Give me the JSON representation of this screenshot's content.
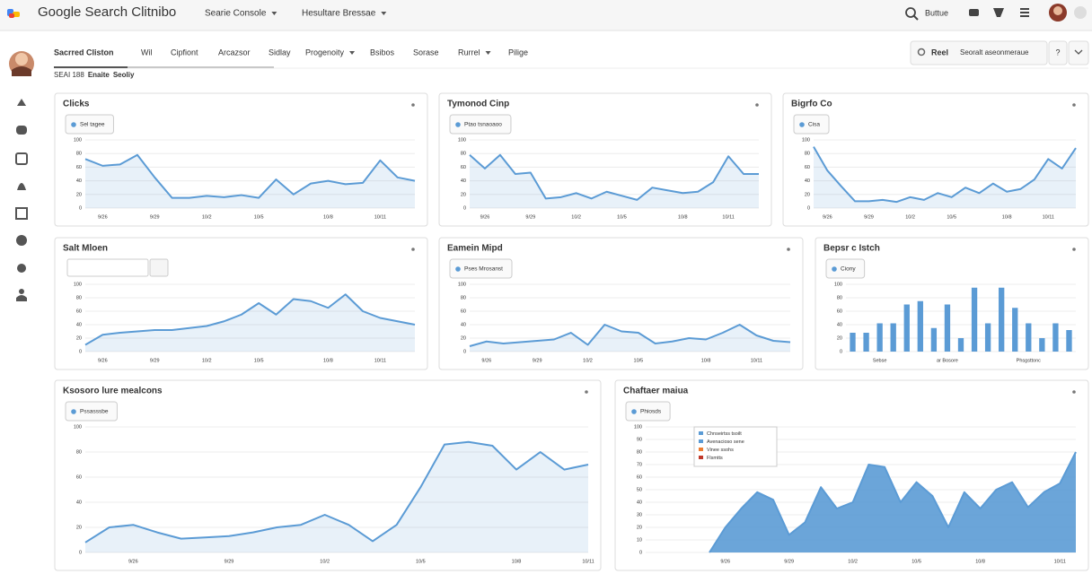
{
  "header": {
    "app_title": "Google Search Clitnibo",
    "menus": [
      "Searie Console",
      "Hesultare Bressae"
    ],
    "search_label": "Buttue"
  },
  "toolbar": {
    "tabs": [
      {
        "label": "Sacrred Cliston"
      },
      {
        "label": "Wil"
      },
      {
        "label": "Cipfiont"
      },
      {
        "label": "Arcazsor"
      },
      {
        "label": "Sidlay"
      },
      {
        "label": "Progenoity",
        "menu": true
      },
      {
        "label": "Bsibos"
      },
      {
        "label": "Sorase"
      },
      {
        "label": "Rurrel",
        "menu": true
      },
      {
        "label": "Pilige"
      }
    ],
    "breadcrumb": [
      "SEAI 188",
      "Enaite",
      "Seoliy"
    ],
    "buttons": [
      "Reel",
      "Seoralt aseonmeraue",
      "?"
    ]
  },
  "chart_data": [
    {
      "type": "line",
      "title": "Clicks",
      "filter": "Sel tagee",
      "color": "#5b9bd5",
      "categories": [
        null,
        "9/26",
        null,
        null,
        "9/29",
        null,
        null,
        "10/2",
        null,
        null,
        "10/5",
        null,
        null,
        null,
        "10/8",
        null,
        null,
        "10/11",
        null,
        null
      ],
      "values": [
        72,
        62,
        64,
        78,
        45,
        15,
        15,
        18,
        16,
        19,
        15,
        42,
        20,
        36,
        40,
        35,
        37,
        70,
        45,
        40
      ],
      "ylim": [
        0,
        100
      ],
      "yticks": [
        0,
        20,
        40,
        60,
        80,
        100
      ],
      "grid": true
    },
    {
      "type": "line",
      "title": "Tymonod Cinp",
      "filter": "Ptao tsnaoaoo",
      "color": "#5b9bd5",
      "categories": [
        null,
        "9/26",
        null,
        null,
        "9/29",
        null,
        null,
        "10/2",
        null,
        null,
        "10/5",
        null,
        null,
        null,
        "10/8",
        null,
        null,
        "10/11",
        null,
        null
      ],
      "values": [
        78,
        58,
        78,
        50,
        52,
        14,
        16,
        22,
        14,
        24,
        18,
        12,
        30,
        26,
        22,
        24,
        38,
        76,
        50,
        50
      ],
      "ylim": [
        0,
        100
      ],
      "yticks": [
        0,
        20,
        40,
        60,
        80,
        100
      ],
      "grid": true
    },
    {
      "type": "line",
      "title": "Bigrfo Co",
      "filter": "Cisa",
      "color": "#5b9bd5",
      "categories": [
        null,
        "9/26",
        null,
        null,
        "9/29",
        null,
        null,
        "10/2",
        null,
        null,
        "10/5",
        null,
        null,
        null,
        "10/8",
        null,
        null,
        "10/11",
        null,
        null
      ],
      "values": [
        90,
        55,
        32,
        10,
        10,
        12,
        9,
        16,
        12,
        22,
        16,
        30,
        22,
        36,
        24,
        28,
        42,
        72,
        58,
        88
      ],
      "ylim": [
        0,
        100
      ],
      "yticks": [
        0,
        20,
        40,
        60,
        80,
        100
      ],
      "grid": true
    },
    {
      "type": "line",
      "title": "Salt Mloen",
      "search_box": true,
      "color": "#5b9bd5",
      "categories": [
        null,
        "9/26",
        null,
        null,
        "9/29",
        null,
        null,
        "10/2",
        null,
        null,
        "10/5",
        null,
        null,
        null,
        "10/8",
        null,
        null,
        "10/11",
        null,
        null
      ],
      "values": [
        10,
        25,
        28,
        30,
        32,
        32,
        35,
        38,
        45,
        55,
        72,
        55,
        78,
        75,
        65,
        85,
        60,
        50,
        45,
        40
      ],
      "ylim": [
        0,
        100
      ],
      "yticks": [
        0,
        20,
        40,
        60,
        80,
        100
      ],
      "grid": true
    },
    {
      "type": "line",
      "title": "Eamein Mipd",
      "filter": "Pses Mrosanst",
      "color": "#5b9bd5",
      "categories": [
        null,
        "9/26",
        null,
        null,
        "9/29",
        null,
        null,
        "10/2",
        null,
        null,
        "10/5",
        null,
        null,
        null,
        "10/8",
        null,
        null,
        "10/11",
        null,
        null
      ],
      "values": [
        8,
        15,
        12,
        14,
        16,
        18,
        28,
        10,
        40,
        30,
        28,
        12,
        15,
        20,
        18,
        28,
        40,
        24,
        16,
        14
      ],
      "ylim": [
        0,
        100
      ],
      "yticks": [
        0,
        20,
        40,
        60,
        80,
        100
      ],
      "grid": true
    },
    {
      "type": "bar",
      "title": "Bepsr c Istch",
      "filter": "Ciony",
      "color": "#5b9bd5",
      "categories": [
        null,
        null,
        "Sebse",
        null,
        null,
        null,
        null,
        "ar Bosore",
        null,
        null,
        null,
        null,
        null,
        "Phsgsttonc",
        null,
        null,
        null
      ],
      "values": [
        28,
        28,
        42,
        42,
        70,
        75,
        35,
        70,
        20,
        95,
        42,
        95,
        65,
        42,
        20,
        42,
        32
      ],
      "ylim": [
        0,
        100
      ],
      "yticks": [
        0,
        20,
        40,
        60,
        80,
        100
      ],
      "grid": true
    },
    {
      "type": "line",
      "title": "Ksosoro lure mealcons",
      "filter": "Pssasssbe",
      "color": "#5b9bd5",
      "categories": [
        null,
        null,
        "9/26",
        null,
        null,
        null,
        "9/29",
        null,
        null,
        null,
        "10/2",
        null,
        null,
        null,
        "10/5",
        null,
        null,
        null,
        "10/8",
        null,
        null,
        "10/11"
      ],
      "values": [
        8,
        20,
        22,
        16,
        11,
        12,
        13,
        16,
        20,
        22,
        30,
        22,
        9,
        22,
        52,
        86,
        88,
        85,
        66,
        80,
        66,
        70
      ],
      "ylim": [
        0,
        100
      ],
      "yticks": [
        0,
        20,
        40,
        60,
        80,
        100
      ],
      "grid": true
    },
    {
      "type": "area",
      "title": "Chaftaer maiua",
      "filter": "Phiosds",
      "color": "#5b9bd5",
      "categories": [
        null,
        null,
        null,
        null,
        null,
        "9/26",
        null,
        null,
        null,
        "9/29",
        null,
        null,
        null,
        "10/2",
        null,
        null,
        null,
        "10/5",
        null,
        null,
        null,
        "10/8",
        null,
        null,
        null,
        null,
        "10/11",
        null
      ],
      "values": [
        null,
        null,
        null,
        null,
        0,
        20,
        35,
        48,
        42,
        14,
        24,
        52,
        35,
        40,
        70,
        68,
        40,
        56,
        45,
        20,
        48,
        35,
        50,
        56,
        36,
        48,
        55,
        80
      ],
      "ylim": [
        0,
        100
      ],
      "yticks": [
        0,
        10,
        20,
        30,
        40,
        50,
        60,
        70,
        80,
        90,
        100
      ],
      "grid": true,
      "legend": [
        {
          "name": "Chnseirtss tsoilt",
          "color": "#5b9bd5"
        },
        {
          "name": "Avenacioso sene",
          "color": "#5b9bd5"
        },
        {
          "name": "Vinee ssohs",
          "color": "#ed7d31"
        },
        {
          "name": "Flsmtts",
          "color": "#c0392b"
        }
      ]
    }
  ]
}
